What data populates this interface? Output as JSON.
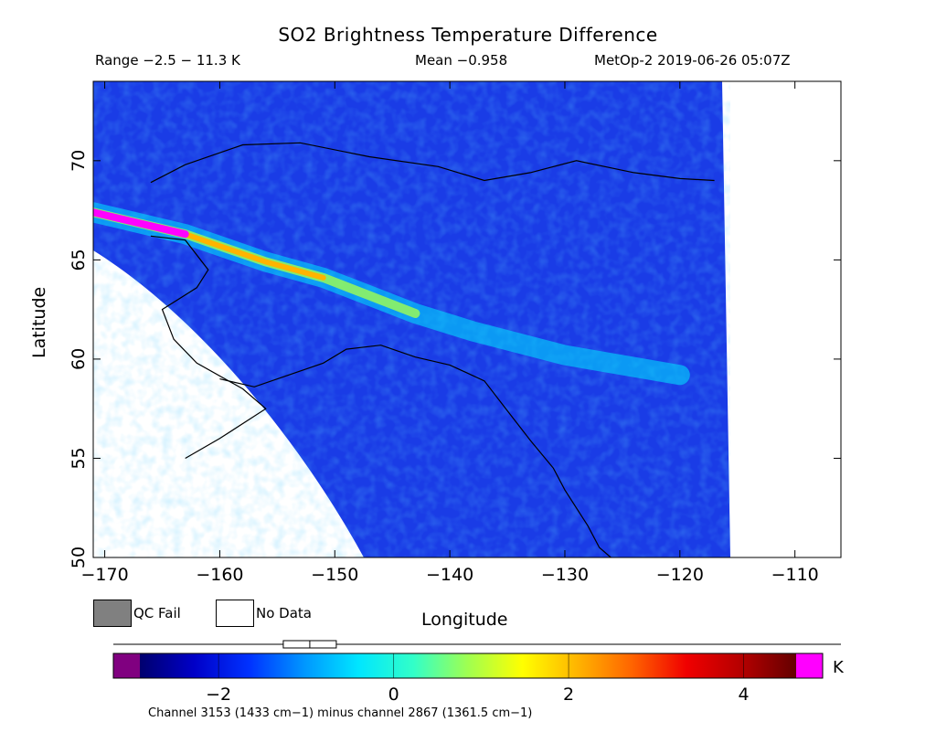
{
  "title": "SO2 Brightness Temperature Difference",
  "header": {
    "range": "Range −2.5 − 11.3 K",
    "mean": "Mean −0.958",
    "satellite_time": "MetOp-2 2019-06-26 05:07Z"
  },
  "axes": {
    "xlabel": "Longitude",
    "ylabel": "Latitude",
    "xlim": [
      -171,
      -106
    ],
    "ylim": [
      50,
      74
    ],
    "xticks": [
      -170,
      -160,
      -150,
      -140,
      -130,
      -120,
      -110
    ],
    "yticks": [
      50,
      55,
      60,
      65,
      70
    ]
  },
  "legend": {
    "qc_fail": "QC Fail",
    "no_data": "No Data",
    "qc_color": "#808080",
    "nodata_color": "#ffffff"
  },
  "colorbar": {
    "unit": "K",
    "range": [
      -2.5,
      5.4
    ],
    "ticks": [
      -2,
      0,
      2,
      4
    ],
    "low_color": "#800080",
    "high_color": "#ff00ff",
    "stops": [
      "#00006e",
      "#0000c8",
      "#0032ff",
      "#0096ff",
      "#00e6ff",
      "#32ffc8",
      "#a0ff50",
      "#ffff00",
      "#ffb400",
      "#ff6400",
      "#f00000",
      "#b40000",
      "#640000"
    ],
    "mean_marker": -0.958
  },
  "footer": "Channel 3153 (1433 cm−1) minus channel 2867 (1361.5 cm−1)",
  "map": {
    "background_color": "#1a3ce6",
    "plume_axis": [
      [
        -171,
        67.4
      ],
      [
        -163,
        66.3
      ],
      [
        -156,
        64.9
      ],
      [
        -151,
        64.1
      ],
      [
        -147,
        63.2
      ],
      [
        -143,
        62.3
      ],
      [
        -138,
        61.4
      ],
      [
        -130,
        60.2
      ],
      [
        -120,
        59.2
      ]
    ],
    "coast_alaska": [
      [
        -166,
        68.9
      ],
      [
        -163,
        69.8
      ],
      [
        -158,
        70.8
      ],
      [
        -153,
        70.9
      ],
      [
        -147,
        70.2
      ],
      [
        -141,
        69.7
      ],
      [
        -137,
        69.0
      ],
      [
        -133,
        69.4
      ],
      [
        -129,
        70.0
      ],
      [
        -124,
        69.4
      ],
      [
        -120,
        69.1
      ],
      [
        -117,
        69.0
      ]
    ],
    "coast_gulf": [
      [
        -160,
        59.0
      ],
      [
        -157,
        58.6
      ],
      [
        -154,
        59.2
      ],
      [
        -151,
        59.8
      ],
      [
        -149,
        60.5
      ],
      [
        -146,
        60.7
      ],
      [
        -143,
        60.1
      ],
      [
        -140,
        59.7
      ],
      [
        -137,
        58.9
      ],
      [
        -135,
        57.4
      ],
      [
        -133,
        55.9
      ],
      [
        -131,
        54.5
      ],
      [
        -130,
        53.4
      ],
      [
        -128,
        51.6
      ],
      [
        -127,
        50.5
      ],
      [
        -126,
        50.0
      ]
    ],
    "coast_west": [
      [
        -166,
        66.2
      ],
      [
        -163,
        66.0
      ],
      [
        -161,
        64.5
      ],
      [
        -162,
        63.6
      ],
      [
        -165,
        62.5
      ],
      [
        -164,
        61.0
      ],
      [
        -162,
        59.8
      ],
      [
        -158,
        58.5
      ],
      [
        -156,
        57.5
      ],
      [
        -160,
        56.0
      ],
      [
        -163,
        55.0
      ]
    ]
  }
}
